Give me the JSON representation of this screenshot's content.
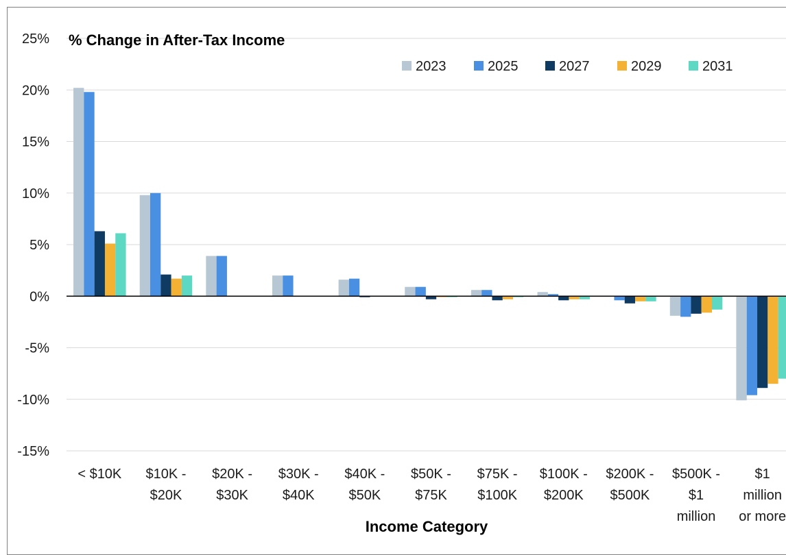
{
  "chart_data": {
    "type": "bar",
    "title": "% Change in After-Tax Income",
    "xlabel": "Income Category",
    "ylabel": "",
    "ylim": [
      -15,
      25
    ],
    "yticks": [
      "25%",
      "20%",
      "15%",
      "10%",
      "5%",
      "0%",
      "-5%",
      "-10%",
      "-15%"
    ],
    "ytick_values": [
      25,
      20,
      15,
      10,
      5,
      0,
      -5,
      -10,
      -15
    ],
    "grid": true,
    "legend_position": "top-right",
    "categories": [
      [
        "< $10K"
      ],
      [
        "$10K -",
        "$20K"
      ],
      [
        "$20K -",
        "$30K"
      ],
      [
        "$30K -",
        "$40K"
      ],
      [
        "$40K -",
        "$50K"
      ],
      [
        "$50K -",
        "$75K"
      ],
      [
        "$75K -",
        "$100K"
      ],
      [
        "$100K -",
        "$200K"
      ],
      [
        "$200K -",
        "$500K"
      ],
      [
        "$500K -",
        "$1",
        "million"
      ],
      [
        "$1",
        "million",
        "or more"
      ]
    ],
    "series": [
      {
        "name": "2023",
        "color": "#b7c7d3",
        "values": [
          20.2,
          9.8,
          3.9,
          2.0,
          1.6,
          0.9,
          0.6,
          0.4,
          0.0,
          -1.9,
          -10.1
        ]
      },
      {
        "name": "2025",
        "color": "#4a90e2",
        "values": [
          19.8,
          10.0,
          3.9,
          2.0,
          1.7,
          0.9,
          0.6,
          0.2,
          -0.4,
          -2.0,
          -9.6
        ]
      },
      {
        "name": "2027",
        "color": "#0f3b63",
        "values": [
          6.3,
          2.1,
          0.0,
          0.0,
          -0.1,
          -0.3,
          -0.4,
          -0.4,
          -0.7,
          -1.7,
          -8.9
        ]
      },
      {
        "name": "2029",
        "color": "#f4b234",
        "values": [
          5.1,
          1.7,
          0.0,
          0.0,
          0.0,
          -0.1,
          -0.3,
          -0.3,
          -0.5,
          -1.6,
          -8.5
        ]
      },
      {
        "name": "2031",
        "color": "#5dd8c3",
        "values": [
          6.1,
          2.0,
          0.0,
          0.0,
          0.0,
          -0.1,
          -0.1,
          -0.3,
          -0.5,
          -1.3,
          -8.0
        ]
      }
    ]
  }
}
